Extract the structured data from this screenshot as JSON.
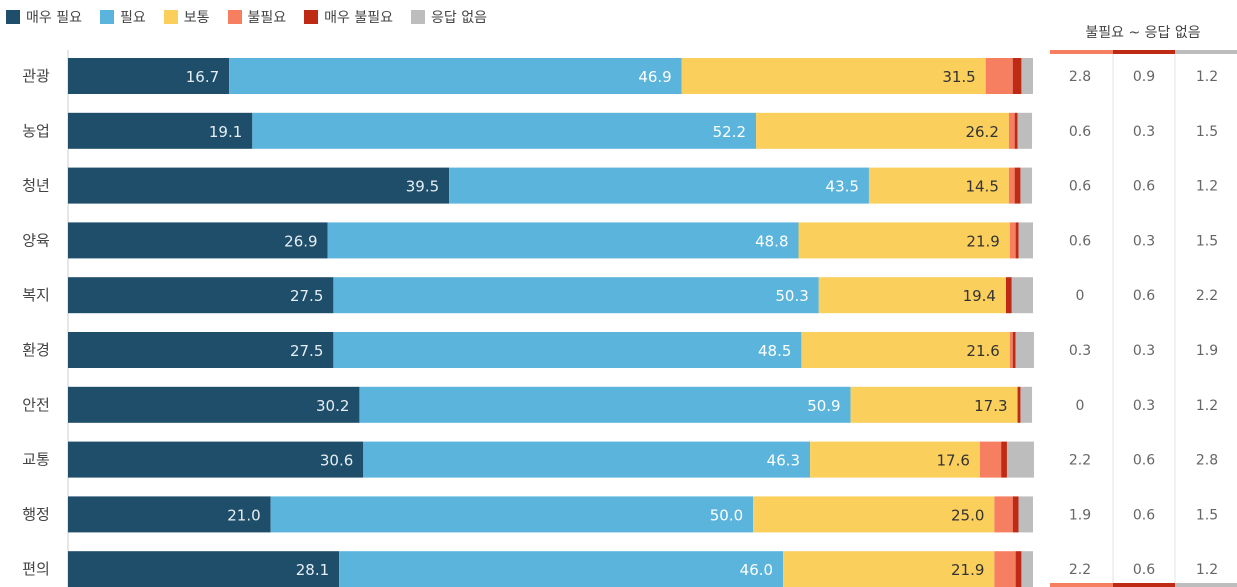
{
  "chart_data": {
    "type": "bar",
    "orientation": "horizontal",
    "stacked": true,
    "categories": [
      "관광",
      "농업",
      "청년",
      "양육",
      "복지",
      "환경",
      "안전",
      "교통",
      "행정",
      "편의"
    ],
    "series": [
      {
        "name": "매우 필요",
        "color": "#1f4e6b",
        "values": [
          16.7,
          19.1,
          39.5,
          26.9,
          27.5,
          27.5,
          30.2,
          30.6,
          21.0,
          28.1
        ]
      },
      {
        "name": "필요",
        "color": "#5ab4dc",
        "values": [
          46.9,
          52.2,
          43.5,
          48.8,
          50.3,
          48.5,
          50.9,
          46.3,
          50.0,
          46.0
        ]
      },
      {
        "name": "보통",
        "color": "#fbcf5c",
        "values": [
          31.5,
          26.2,
          14.5,
          21.9,
          19.4,
          21.6,
          17.3,
          17.6,
          25.0,
          21.9
        ]
      },
      {
        "name": "불필요",
        "color": "#f77f61",
        "values": [
          2.8,
          0.6,
          0.6,
          0.6,
          0,
          0.3,
          0,
          2.2,
          1.9,
          2.2
        ]
      },
      {
        "name": "매우 불필요",
        "color": "#bf2a14",
        "values": [
          0.9,
          0.3,
          0.6,
          0.3,
          0.6,
          0.3,
          0.3,
          0.6,
          0.6,
          0.6
        ]
      },
      {
        "name": "응답 없음",
        "color": "#bdbdbd",
        "values": [
          1.2,
          1.5,
          1.2,
          1.5,
          2.2,
          1.9,
          1.2,
          2.8,
          1.5,
          1.2
        ]
      }
    ],
    "bar_labels_text": [
      [
        "16.7",
        "46.9",
        "31.5"
      ],
      [
        "19.1",
        "52.2",
        "26.2"
      ],
      [
        "39.5",
        "43.5",
        "14.5"
      ],
      [
        "26.9",
        "48.8",
        "21.9"
      ],
      [
        "27.5",
        "50.3",
        "19.4"
      ],
      [
        "27.5",
        "48.5",
        "21.6"
      ],
      [
        "30.2",
        "50.9",
        "17.3"
      ],
      [
        "30.6",
        "46.3",
        "17.6"
      ],
      [
        "21.0",
        "50.0",
        "25.0"
      ],
      [
        "28.1",
        "46.0",
        "21.9"
      ]
    ],
    "table": {
      "title": "불필요 ~ 응답 없음",
      "rows": [
        [
          "2.8",
          "0.9",
          "1.2"
        ],
        [
          "0.6",
          "0.3",
          "1.5"
        ],
        [
          "0.6",
          "0.6",
          "1.2"
        ],
        [
          "0.6",
          "0.3",
          "1.5"
        ],
        [
          "0",
          "0.6",
          "2.2"
        ],
        [
          "0.3",
          "0.3",
          "1.9"
        ],
        [
          "0",
          "0.3",
          "1.2"
        ],
        [
          "2.2",
          "0.6",
          "2.8"
        ],
        [
          "1.9",
          "0.6",
          "1.5"
        ],
        [
          "2.2",
          "0.6",
          "1.2"
        ]
      ]
    },
    "xlim": [
      0,
      100
    ],
    "legend_position": "top-left",
    "grid": false
  }
}
